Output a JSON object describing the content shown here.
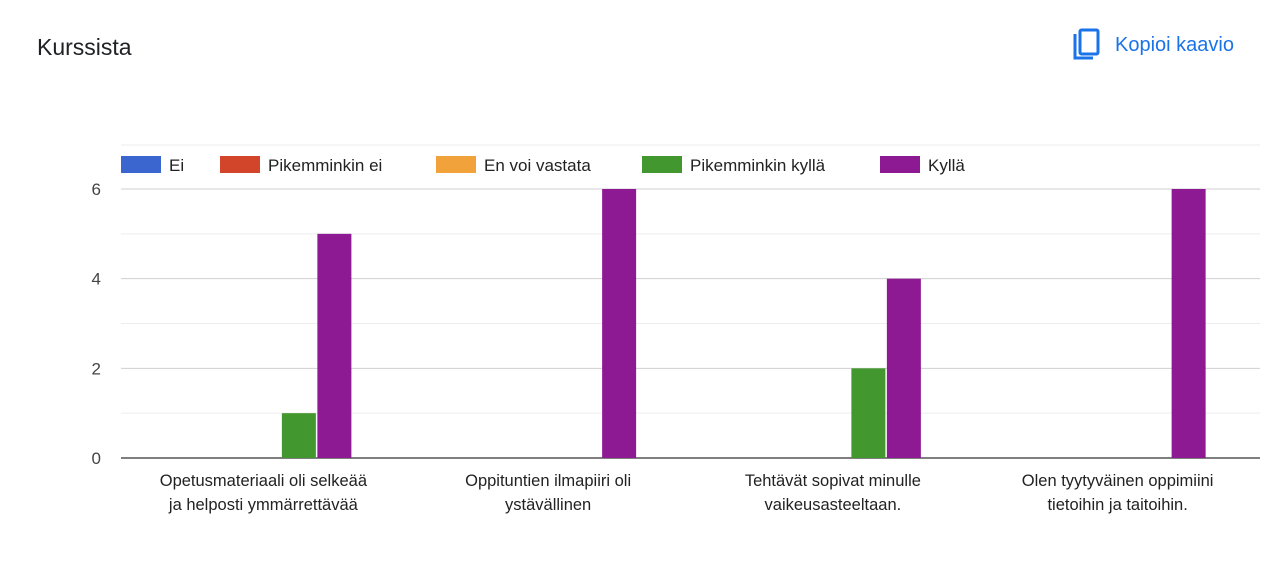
{
  "header": {
    "title": "Kurssista",
    "copy_label": "Kopioi kaavio",
    "copy_icon": "copy-icon",
    "accent": "#1a73e8"
  },
  "chart_data": {
    "type": "bar",
    "title": "Kurssista",
    "categories": [
      [
        "Opetusmateriaali oli selkeää",
        "ja helposti ymmärrettävää"
      ],
      [
        "Oppituntien ilmapiiri oli",
        "ystävällinen"
      ],
      [
        "Tehtävät sopivat minulle",
        "vaikeusasteeltaan."
      ],
      [
        "Olen tyytyväinen oppimiini",
        "tietoihin ja taitoihin."
      ]
    ],
    "series": [
      {
        "name": "Ei",
        "color": "#3b66cf",
        "values": [
          0,
          0,
          0,
          0
        ]
      },
      {
        "name": "Pikemminkin ei",
        "color": "#d2452b",
        "values": [
          0,
          0,
          0,
          0
        ]
      },
      {
        "name": "En voi vastata",
        "color": "#f2a23a",
        "values": [
          0,
          0,
          0,
          0
        ]
      },
      {
        "name": "Pikemminkin kyllä",
        "color": "#43972f",
        "values": [
          1,
          0,
          2,
          0
        ]
      },
      {
        "name": "Kyllä",
        "color": "#8e1a93",
        "values": [
          5,
          6,
          4,
          6
        ]
      }
    ],
    "yticks": [
      0,
      2,
      4,
      6
    ],
    "ylim": [
      0,
      6
    ],
    "grid": true,
    "legend": "top-left"
  }
}
